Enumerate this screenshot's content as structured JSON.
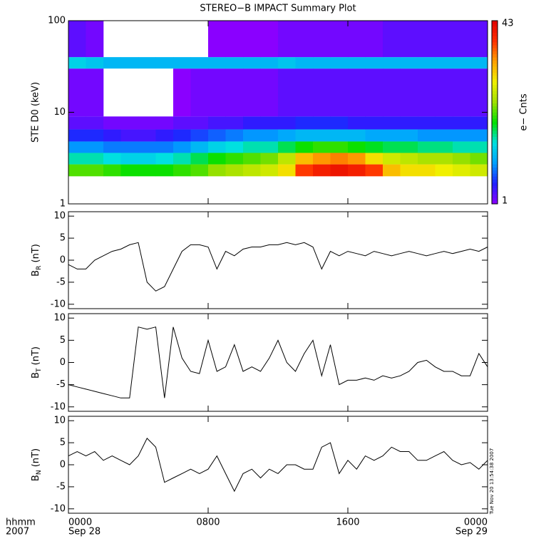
{
  "title": "STEREO−B IMPACT Summary Plot",
  "timestamp": "Tue Nov 20 13:54:38 2007",
  "x_axis": {
    "row_labels": [
      "hhmm",
      "2007"
    ],
    "dates": [
      "Sep 28",
      "Sep 29"
    ],
    "xlim": [
      0,
      24
    ],
    "xticks": [
      {
        "value": 0,
        "label": "0000"
      },
      {
        "value": 8,
        "label": "0800"
      },
      {
        "value": 16,
        "label": "1600"
      },
      {
        "value": 24,
        "label": "0000"
      }
    ]
  },
  "chart_data": [
    {
      "type": "heatmap",
      "ylabel": "STE D0 (keV)",
      "log_y": true,
      "ylim": [
        1,
        100
      ],
      "yticks": [
        1,
        10,
        100
      ],
      "x_bins": [
        0,
        1,
        2,
        3,
        4,
        5,
        6,
        7,
        8,
        9,
        10,
        11,
        12,
        13,
        14,
        15,
        16,
        17,
        18,
        19,
        20,
        21,
        22,
        23,
        24
      ],
      "y_bins": [
        2,
        2.7,
        3.6,
        4.8,
        6.5,
        9,
        30,
        40,
        100
      ],
      "values": [
        [
          22,
          22,
          21,
          20,
          20,
          20,
          21,
          22,
          24,
          25,
          26,
          27,
          30,
          38,
          40,
          41,
          40,
          38,
          32,
          30,
          30,
          29,
          28,
          27
        ],
        [
          16,
          16,
          15,
          14,
          14,
          15,
          16,
          18,
          20,
          21,
          22,
          23,
          26,
          32,
          34,
          35,
          34,
          30,
          27,
          26,
          25,
          25,
          24,
          23
        ],
        [
          10,
          10,
          9,
          9,
          9,
          9,
          10,
          12,
          14,
          15,
          16,
          16,
          18,
          20,
          21,
          21,
          20,
          19,
          18,
          18,
          17,
          17,
          16,
          16
        ],
        [
          6,
          6,
          5,
          4,
          4,
          5,
          6,
          7,
          8,
          9,
          10,
          10,
          11,
          12,
          12,
          12,
          12,
          11,
          11,
          11,
          10,
          10,
          10,
          10
        ],
        [
          3,
          3,
          2,
          2,
          2,
          2,
          3,
          3,
          4,
          4,
          5,
          5,
          5,
          6,
          6,
          6,
          5,
          5,
          5,
          5,
          5,
          5,
          5,
          5
        ],
        [
          2,
          2,
          null,
          null,
          null,
          null,
          1,
          2,
          2,
          2,
          2,
          2,
          3,
          3,
          3,
          3,
          3,
          3,
          3,
          3,
          3,
          3,
          3,
          3
        ],
        [
          14,
          13,
          12,
          12,
          12,
          12,
          12,
          12,
          12,
          12,
          12,
          12,
          13,
          12,
          12,
          12,
          12,
          12,
          12,
          12,
          12,
          12,
          12,
          12
        ],
        [
          3,
          2,
          null,
          null,
          null,
          null,
          null,
          null,
          1,
          1,
          1,
          1,
          2,
          2,
          2,
          2,
          2,
          2,
          3,
          3,
          3,
          3,
          3,
          3
        ]
      ],
      "colorbar": {
        "label": "e− Cnts",
        "min": 1,
        "max": 43,
        "colors": [
          "#8a00ff",
          "#2020ff",
          "#00a0ff",
          "#00e0e0",
          "#00e000",
          "#a0e000",
          "#f0f000",
          "#ffa000",
          "#ff3000",
          "#e00000"
        ]
      }
    },
    {
      "type": "line",
      "ylabel": {
        "base": "B",
        "sub": "R",
        "unit": " (nT)"
      },
      "ylim": [
        -11,
        11
      ],
      "yticks": [
        -10,
        -5,
        0,
        5,
        10
      ],
      "color": "#000000",
      "x": [
        0,
        0.5,
        1,
        1.5,
        2,
        2.5,
        3,
        3.5,
        4,
        4.5,
        5,
        5.5,
        6,
        6.5,
        7,
        7.5,
        8,
        8.5,
        9,
        9.5,
        10,
        10.5,
        11,
        11.5,
        12,
        12.5,
        13,
        13.5,
        14,
        14.5,
        15,
        15.5,
        16,
        16.5,
        17,
        17.5,
        18,
        18.5,
        19,
        19.5,
        20,
        20.5,
        21,
        21.5,
        22,
        22.5,
        23,
        23.5,
        24
      ],
      "values": [
        -1,
        -2,
        -2,
        0,
        1,
        2,
        2.5,
        3.5,
        4,
        -5,
        -7,
        -6,
        -2,
        2,
        3.5,
        3.5,
        3,
        -2,
        2,
        1,
        2.5,
        3,
        3,
        3.5,
        3.5,
        4,
        3.5,
        4,
        3,
        -2,
        2,
        1,
        2,
        1.5,
        1,
        2,
        1.5,
        1,
        1.5,
        2,
        1.5,
        1,
        1.5,
        2,
        1.5,
        2,
        2.5,
        2,
        3
      ]
    },
    {
      "type": "line",
      "ylabel": {
        "base": "B",
        "sub": "T",
        "unit": " (nT)"
      },
      "ylim": [
        -11,
        11
      ],
      "yticks": [
        -10,
        -5,
        0,
        5,
        10
      ],
      "color": "#000000",
      "x": [
        0,
        0.5,
        1,
        1.5,
        2,
        2.5,
        3,
        3.5,
        4,
        4.5,
        5,
        5.5,
        6,
        6.5,
        7,
        7.5,
        8,
        8.5,
        9,
        9.5,
        10,
        10.5,
        11,
        11.5,
        12,
        12.5,
        13,
        13.5,
        14,
        14.5,
        15,
        15.5,
        16,
        16.5,
        17,
        17.5,
        18,
        18.5,
        19,
        19.5,
        20,
        20.5,
        21,
        21.5,
        22,
        22.5,
        23,
        23.5,
        24
      ],
      "values": [
        -5,
        -5.5,
        -6,
        -6.5,
        -7,
        -7.5,
        -8,
        -8,
        8,
        7.5,
        8,
        -8,
        8,
        1,
        -2,
        -2.5,
        5,
        -2,
        -1,
        4,
        -2,
        -1,
        -2,
        1,
        5,
        0,
        -2,
        2,
        5,
        -3,
        4,
        -5,
        -4,
        -4,
        -3.5,
        -4,
        -3,
        -3.5,
        -3,
        -2,
        0,
        0.5,
        -1,
        -2,
        -2,
        -3,
        -3,
        2,
        -1
      ]
    },
    {
      "type": "line",
      "ylabel": {
        "base": "B",
        "sub": "N",
        "unit": " (nT)"
      },
      "ylim": [
        -11,
        11
      ],
      "yticks": [
        -10,
        -5,
        0,
        5,
        10
      ],
      "color": "#000000",
      "x": [
        0,
        0.5,
        1,
        1.5,
        2,
        2.5,
        3,
        3.5,
        4,
        4.5,
        5,
        5.5,
        6,
        6.5,
        7,
        7.5,
        8,
        8.5,
        9,
        9.5,
        10,
        10.5,
        11,
        11.5,
        12,
        12.5,
        13,
        13.5,
        14,
        14.5,
        15,
        15.5,
        16,
        16.5,
        17,
        17.5,
        18,
        18.5,
        19,
        19.5,
        20,
        20.5,
        21,
        21.5,
        22,
        22.5,
        23,
        23.5,
        24
      ],
      "values": [
        2,
        3,
        2,
        3,
        1,
        2,
        1,
        0,
        2,
        6,
        4,
        -4,
        -3,
        -2,
        -1,
        -2,
        -1,
        2,
        -2,
        -6,
        -2,
        -1,
        -3,
        -1,
        -2,
        0,
        0,
        -1,
        -1,
        4,
        5,
        -2,
        1,
        -1,
        2,
        1,
        2,
        4,
        3,
        3,
        1,
        1,
        2,
        3,
        1,
        0,
        0.5,
        -1,
        1
      ]
    }
  ]
}
